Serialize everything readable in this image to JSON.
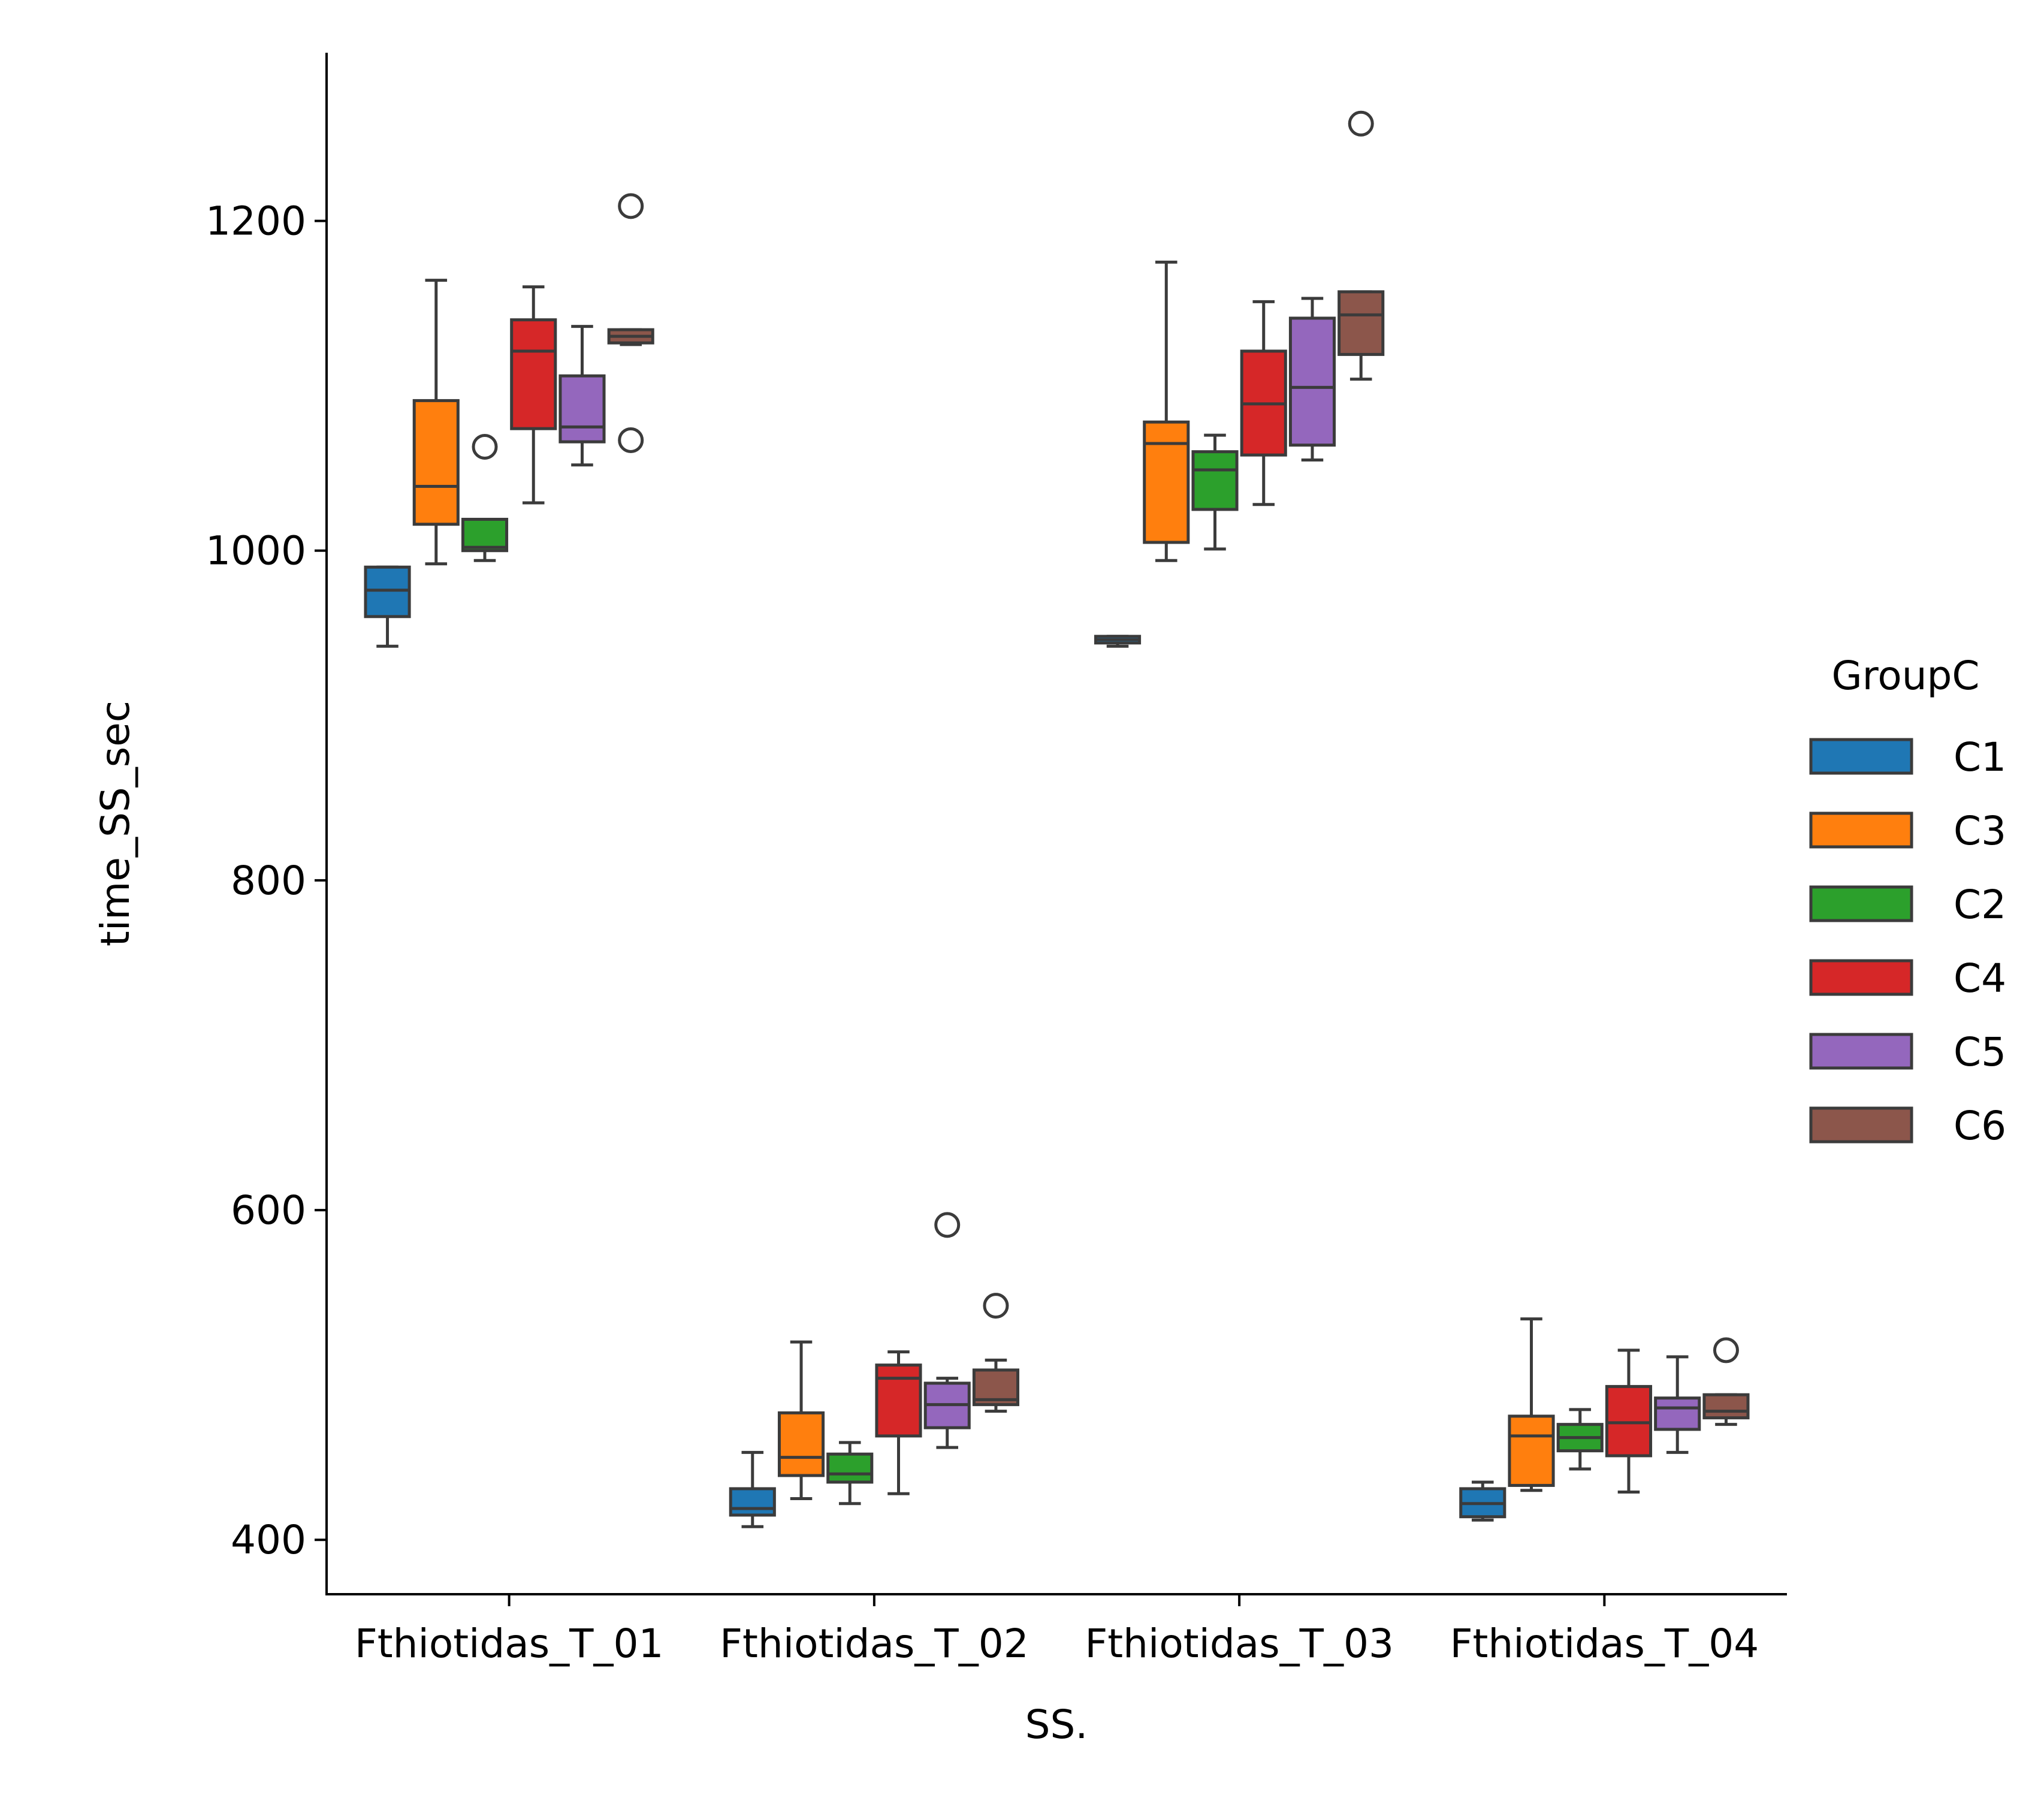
{
  "chart_data": {
    "type": "box",
    "xlabel": "SS.",
    "ylabel": "time_SS_sec",
    "ylim": [
      367,
      1302
    ],
    "yticks": [
      400,
      600,
      800,
      1000,
      1200
    ],
    "ytick_labels": [
      "400",
      "600",
      "800",
      "1000",
      "1200"
    ],
    "categories": [
      "Fthiotidas_T_01",
      "Fthiotidas_T_02",
      "Fthiotidas_T_03",
      "Fthiotidas_T_04"
    ],
    "legend": {
      "title": "GroupC",
      "placement": "right"
    },
    "grid": false,
    "series": [
      {
        "name": "C1",
        "color": "#1f77b4",
        "boxes": [
          {
            "whislo": 942,
            "q1": 960,
            "med": 976,
            "q3": 990,
            "whishi": 990,
            "fliers": []
          },
          {
            "whislo": 408,
            "q1": 415,
            "med": 419,
            "q3": 431,
            "whishi": 453,
            "fliers": []
          },
          {
            "whislo": 942,
            "q1": 944,
            "med": 946,
            "q3": 948,
            "whishi": 948,
            "fliers": []
          },
          {
            "whislo": 412,
            "q1": 414,
            "med": 422,
            "q3": 431,
            "whishi": 435,
            "fliers": []
          }
        ]
      },
      {
        "name": "C3",
        "color": "#ff7f0e",
        "boxes": [
          {
            "whislo": 992,
            "q1": 1016,
            "med": 1039,
            "q3": 1091,
            "whishi": 1164,
            "fliers": []
          },
          {
            "whislo": 425,
            "q1": 439,
            "med": 450,
            "q3": 477,
            "whishi": 520,
            "fliers": []
          },
          {
            "whislo": 994,
            "q1": 1005,
            "med": 1065,
            "q3": 1078,
            "whishi": 1175,
            "fliers": []
          },
          {
            "whislo": 430,
            "q1": 433,
            "med": 463,
            "q3": 475,
            "whishi": 534,
            "fliers": []
          }
        ]
      },
      {
        "name": "C2",
        "color": "#2ca02c",
        "boxes": [
          {
            "whislo": 994,
            "q1": 1000,
            "med": 1002,
            "q3": 1019,
            "whishi": 1019,
            "fliers": [
              1063
            ]
          },
          {
            "whislo": 422,
            "q1": 435,
            "med": 440,
            "q3": 452,
            "whishi": 459,
            "fliers": []
          },
          {
            "whislo": 1001,
            "q1": 1025,
            "med": 1049,
            "q3": 1060,
            "whishi": 1070,
            "fliers": []
          },
          {
            "whislo": 443,
            "q1": 454,
            "med": 462,
            "q3": 470,
            "whishi": 479,
            "fliers": []
          }
        ]
      },
      {
        "name": "C4",
        "color": "#d62728",
        "boxes": [
          {
            "whislo": 1029,
            "q1": 1074,
            "med": 1121,
            "q3": 1140,
            "whishi": 1160,
            "fliers": []
          },
          {
            "whislo": 428,
            "q1": 463,
            "med": 498,
            "q3": 506,
            "whishi": 514,
            "fliers": []
          },
          {
            "whislo": 1028,
            "q1": 1058,
            "med": 1089,
            "q3": 1121,
            "whishi": 1151,
            "fliers": []
          },
          {
            "whislo": 429,
            "q1": 451,
            "med": 471,
            "q3": 493,
            "whishi": 515,
            "fliers": []
          }
        ]
      },
      {
        "name": "C5",
        "color": "#9467bd",
        "boxes": [
          {
            "whislo": 1052,
            "q1": 1066,
            "med": 1075,
            "q3": 1106,
            "whishi": 1136,
            "fliers": []
          },
          {
            "whislo": 456,
            "q1": 468,
            "med": 482,
            "q3": 495,
            "whishi": 498,
            "fliers": [
              591
            ]
          },
          {
            "whislo": 1055,
            "q1": 1064,
            "med": 1099,
            "q3": 1141,
            "whishi": 1153,
            "fliers": []
          },
          {
            "whislo": 453,
            "q1": 467,
            "med": 480,
            "q3": 486,
            "whishi": 511,
            "fliers": []
          }
        ]
      },
      {
        "name": "C6",
        "color": "#8c564b",
        "boxes": [
          {
            "whislo": 1125,
            "q1": 1126,
            "med": 1130,
            "q3": 1134,
            "whishi": 1134,
            "fliers": [
              1209,
              1067
            ]
          },
          {
            "whislo": 478,
            "q1": 482,
            "med": 485,
            "q3": 503,
            "whishi": 509,
            "fliers": [
              542
            ]
          },
          {
            "whislo": 1104,
            "q1": 1119,
            "med": 1143,
            "q3": 1157,
            "whishi": 1157,
            "fliers": [
              1259
            ]
          },
          {
            "whislo": 470,
            "q1": 474,
            "med": 478,
            "q3": 488,
            "whishi": 488,
            "fliers": [
              515
            ]
          }
        ]
      }
    ]
  }
}
